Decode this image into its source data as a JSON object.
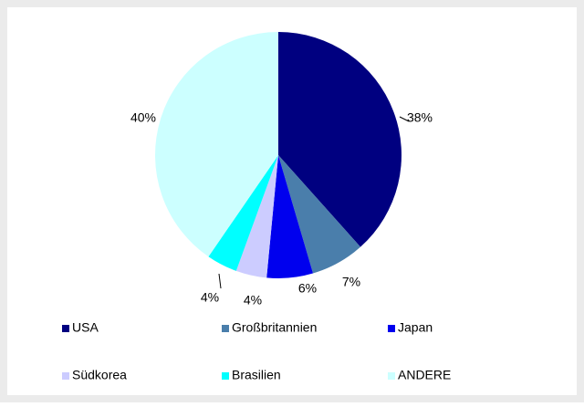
{
  "chart_data": {
    "type": "pie",
    "categories": [
      "USA",
      "Großbritannien",
      "Japan",
      "Südkorea",
      "Brasilien",
      "ANDERE"
    ],
    "values": [
      38,
      7,
      6,
      4,
      4,
      40
    ],
    "value_labels": [
      "38%",
      "7%",
      "6%",
      "4%",
      "4%",
      "40%"
    ],
    "colors": [
      "#000080",
      "#4a7eab",
      "#0000ee",
      "#ccccff",
      "#00ffff",
      "#ccffff"
    ],
    "legend": "bottom"
  }
}
